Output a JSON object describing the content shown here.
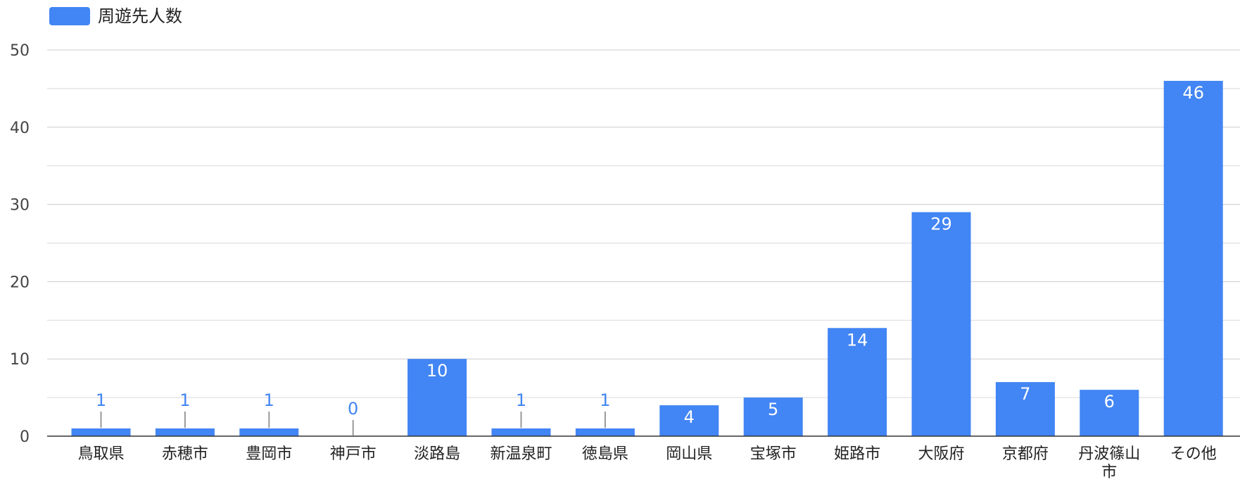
{
  "chart_data": {
    "type": "bar",
    "categories": [
      "鳥取県",
      "赤穂市",
      "豊岡市",
      "神戸市",
      "淡路島",
      "新温泉町",
      "徳島県",
      "岡山県",
      "宝塚市",
      "姫路市",
      "大阪府",
      "京都府",
      "丹波篠山市",
      "その他"
    ],
    "category_display_lines": [
      [
        "鳥取県"
      ],
      [
        "赤穂市"
      ],
      [
        "豊岡市"
      ],
      [
        "神戸市"
      ],
      [
        "淡路島"
      ],
      [
        "新温泉町"
      ],
      [
        "徳島県"
      ],
      [
        "岡山県"
      ],
      [
        "宝塚市"
      ],
      [
        "姫路市"
      ],
      [
        "大阪府"
      ],
      [
        "京都府"
      ],
      [
        "丹波篠山",
        "市"
      ],
      [
        "その他"
      ]
    ],
    "series": [
      {
        "name": "周遊先人数",
        "values": [
          1,
          1,
          1,
          0,
          10,
          1,
          1,
          4,
          5,
          14,
          29,
          7,
          6,
          46
        ],
        "color": "#4285f4"
      }
    ],
    "title": "",
    "xlabel": "",
    "ylabel": "",
    "ylim": [
      0,
      50
    ],
    "yticks": [
      0,
      10,
      20,
      30,
      40,
      50
    ],
    "grid": true,
    "legend_position": "top-left",
    "data_labels": true
  }
}
